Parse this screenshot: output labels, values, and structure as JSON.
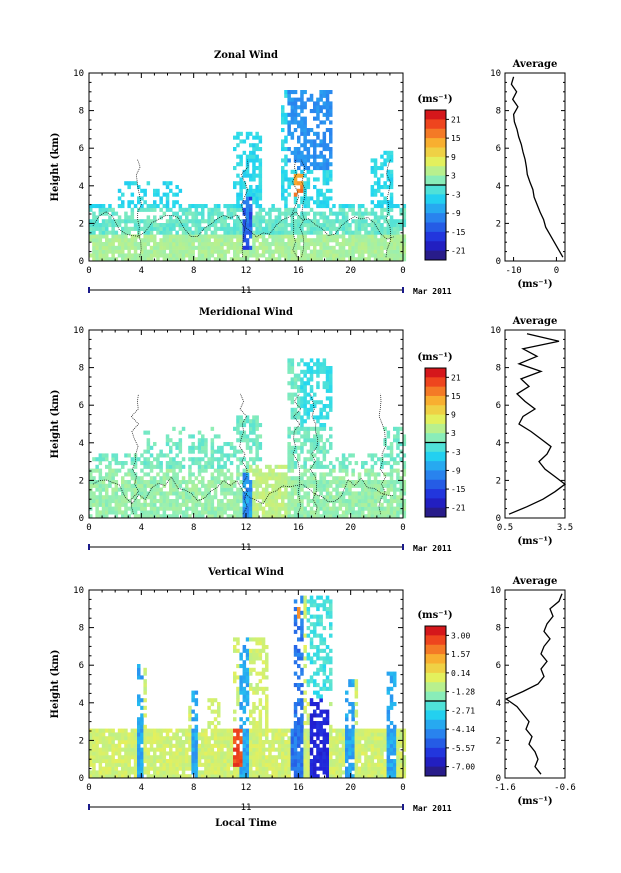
{
  "chart_data": [
    {
      "type": "heatmap",
      "title": "Zonal Wind",
      "ylabel": "Height (km)",
      "ylim": [
        0,
        10
      ],
      "xlim": [
        0,
        24
      ],
      "x_ticks": [
        "0",
        "4",
        "8",
        "12",
        "16",
        "20",
        "0"
      ],
      "y_ticks": [
        "0",
        "2",
        "4",
        "6",
        "8",
        "10"
      ],
      "date_label": "11",
      "month_label": "Mar 2011",
      "colorbar": {
        "unit": "(ms⁻¹)",
        "range": [
          -24,
          24
        ],
        "ticks": [
          "21",
          "15",
          "9",
          "3",
          "-3",
          "-9",
          "-15",
          "-21"
        ]
      },
      "average_profile": {
        "title": "Average",
        "xlabel": "(ms⁻¹)",
        "xlim": [
          -12,
          2
        ],
        "x_ticks": [
          "-10",
          "0"
        ],
        "y_ticks": [
          "0",
          "2",
          "4",
          "6",
          "8",
          "10"
        ],
        "height": [
          0.2,
          0.6,
          1.0,
          1.4,
          1.8,
          2.2,
          2.6,
          3.0,
          3.4,
          3.8,
          4.2,
          4.6,
          5.0,
          5.4,
          5.8,
          6.2,
          6.6,
          7.0,
          7.4,
          7.8,
          8.2,
          8.6,
          9.0,
          9.4,
          9.8
        ],
        "value": [
          1.5,
          0.5,
          -0.5,
          -1.5,
          -2.5,
          -3.0,
          -3.8,
          -4.5,
          -5.2,
          -5.5,
          -6.2,
          -6.8,
          -7.0,
          -7.3,
          -7.8,
          -8.2,
          -8.8,
          -9.2,
          -9.8,
          -10.0,
          -9.0,
          -10.2,
          -9.3,
          -10.5,
          -10.0
        ]
      }
    },
    {
      "type": "heatmap",
      "title": "Meridional Wind",
      "ylabel": "Height (km)",
      "ylim": [
        0,
        10
      ],
      "xlim": [
        0,
        24
      ],
      "x_ticks": [
        "0",
        "4",
        "8",
        "12",
        "16",
        "20",
        "0"
      ],
      "y_ticks": [
        "0",
        "2",
        "4",
        "6",
        "8",
        "10"
      ],
      "date_label": "11",
      "month_label": "Mar 2011",
      "colorbar": {
        "unit": "(ms⁻¹)",
        "range": [
          -24,
          24
        ],
        "ticks": [
          "21",
          "15",
          "9",
          "3",
          "-3",
          "-9",
          "-15",
          "-21"
        ]
      },
      "average_profile": {
        "title": "Average",
        "xlabel": "(ms⁻¹)",
        "xlim": [
          0.5,
          3.5
        ],
        "x_ticks": [
          "0.5",
          "3.5"
        ],
        "y_ticks": [
          "0",
          "2",
          "4",
          "6",
          "8",
          "10"
        ],
        "height": [
          0.2,
          0.6,
          1.0,
          1.4,
          1.8,
          2.2,
          2.6,
          3.0,
          3.4,
          3.8,
          4.2,
          4.6,
          5.0,
          5.4,
          5.8,
          6.2,
          6.6,
          7.0,
          7.4,
          7.8,
          8.2,
          8.6,
          9.0,
          9.4,
          9.8
        ],
        "value": [
          0.7,
          1.6,
          2.4,
          3.0,
          3.5,
          3.0,
          2.5,
          2.2,
          2.6,
          2.8,
          2.3,
          1.8,
          1.2,
          1.4,
          2.0,
          1.5,
          1.1,
          1.7,
          1.3,
          2.3,
          1.2,
          2.1,
          1.4,
          3.2,
          1.6
        ]
      }
    },
    {
      "type": "heatmap",
      "title": "Vertical Wind",
      "ylabel": "Height (km)",
      "xlabel": "Local Time",
      "ylim": [
        0,
        10
      ],
      "xlim": [
        0,
        24
      ],
      "x_ticks": [
        "0",
        "4",
        "8",
        "12",
        "16",
        "20",
        "0"
      ],
      "y_ticks": [
        "0",
        "2",
        "4",
        "6",
        "8",
        "10"
      ],
      "date_label": "11",
      "month_label": "Mar 2011",
      "colorbar": {
        "unit": "(ms⁻¹)",
        "range": [
          -8.5,
          4.5
        ],
        "ticks": [
          "3.00",
          "1.57",
          "0.14",
          "-1.28",
          "-2.71",
          "-4.14",
          "-5.57",
          "-7.00"
        ]
      },
      "average_profile": {
        "title": "Average",
        "xlabel": "(ms⁻¹)",
        "xlim": [
          -1.6,
          -0.6
        ],
        "x_ticks": [
          "-1.6",
          "-0.6"
        ],
        "y_ticks": [
          "0",
          "2",
          "4",
          "6",
          "8",
          "10"
        ],
        "height": [
          0.2,
          0.6,
          1.0,
          1.4,
          1.8,
          2.2,
          2.6,
          3.0,
          3.4,
          3.8,
          4.2,
          4.6,
          5.0,
          5.4,
          5.8,
          6.2,
          6.6,
          7.0,
          7.4,
          7.8,
          8.2,
          8.6,
          9.0,
          9.4,
          9.8
        ],
        "value": [
          -1.0,
          -1.1,
          -1.05,
          -1.1,
          -1.2,
          -1.15,
          -1.25,
          -1.2,
          -1.3,
          -1.4,
          -1.58,
          -1.3,
          -1.05,
          -0.95,
          -1.0,
          -0.9,
          -1.0,
          -0.95,
          -0.85,
          -0.95,
          -0.9,
          -0.8,
          -0.85,
          -0.7,
          -0.65
        ]
      }
    }
  ]
}
